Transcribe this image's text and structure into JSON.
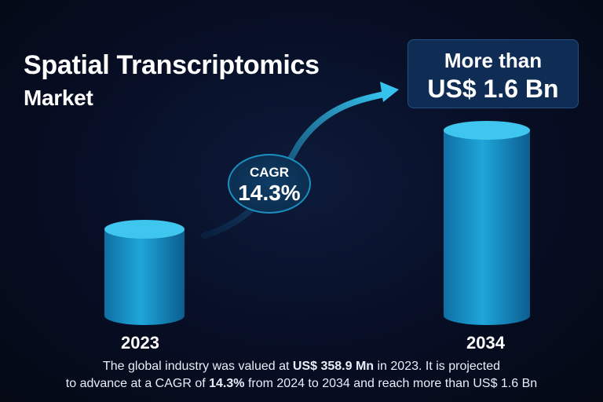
{
  "title": {
    "line1": "Spatial Transcriptomics",
    "line2": "Market"
  },
  "callout": {
    "line1": "More than",
    "line2": "US$ 1.6 Bn"
  },
  "cagr": {
    "label": "CAGR",
    "value": "14.3%"
  },
  "footer": {
    "l1_pre": "The global industry was valued at ",
    "l1_bold": "US$ 358.9 Mn",
    "l1_post": " in 2023. It is projected",
    "l2_pre": "to advance at a CAGR of ",
    "l2_bold": "14.3%",
    "l2_post": " from 2024 to 2034 and reach more than US$ 1.6 Bn"
  },
  "colors": {
    "background": "#070e24",
    "bar": "#1aa3d6",
    "bar_top": "#3ec6ee",
    "arrow": "#2cb8e6"
  },
  "chart_data": {
    "type": "bar",
    "categories": [
      "2023",
      "2034"
    ],
    "values": [
      358.9,
      1600
    ],
    "unit": "US$ Mn"
  }
}
